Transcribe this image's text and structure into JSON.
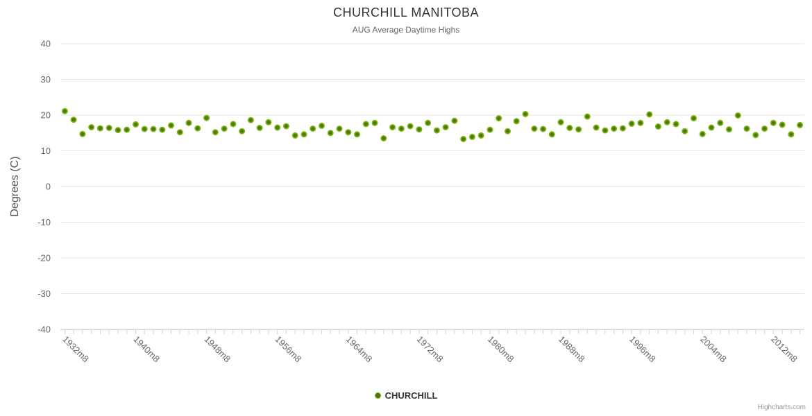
{
  "credits": "Highcharts.com",
  "colors": {
    "grid": "#e6e6e6",
    "axis_line": "#ccd6eb",
    "tick": "#ccd6eb",
    "title_text": "#333333",
    "subtitle_text": "#666666",
    "axis_label_text": "#666666",
    "legend_text": "#333333",
    "credits_text": "#999999",
    "marker_outer": "#7cb50e",
    "marker_center": "#4a750a"
  },
  "chart_data": {
    "type": "scatter",
    "title": "CHURCHILL MANITOBA",
    "subtitle": "AUG Average Daytime Highs",
    "xlabel": "",
    "ylabel": "Degrees (C)",
    "ylim": [
      -40,
      40
    ],
    "y_ticks": [
      40,
      30,
      20,
      10,
      0,
      -10,
      -20,
      -30,
      -40
    ],
    "x_label_step": 8,
    "x_visible_labels": [
      "1932m8",
      "1940m8",
      "1948m8",
      "1956m8",
      "1964m8",
      "1972m8",
      "1980m8",
      "1988m8",
      "1996m8",
      "2004m8",
      "2012m8"
    ],
    "grid": "horizontal",
    "legend_position": "bottom-center",
    "categories": [
      "1932m8",
      "1933m8",
      "1934m8",
      "1935m8",
      "1936m8",
      "1937m8",
      "1938m8",
      "1939m8",
      "1940m8",
      "1941m8",
      "1942m8",
      "1943m8",
      "1944m8",
      "1945m8",
      "1946m8",
      "1947m8",
      "1948m8",
      "1949m8",
      "1950m8",
      "1951m8",
      "1952m8",
      "1953m8",
      "1954m8",
      "1955m8",
      "1956m8",
      "1957m8",
      "1958m8",
      "1959m8",
      "1960m8",
      "1961m8",
      "1962m8",
      "1963m8",
      "1964m8",
      "1965m8",
      "1966m8",
      "1967m8",
      "1968m8",
      "1969m8",
      "1970m8",
      "1971m8",
      "1972m8",
      "1973m8",
      "1974m8",
      "1975m8",
      "1976m8",
      "1977m8",
      "1978m8",
      "1979m8",
      "1980m8",
      "1981m8",
      "1982m8",
      "1983m8",
      "1984m8",
      "1985m8",
      "1986m8",
      "1987m8",
      "1988m8",
      "1989m8",
      "1990m8",
      "1991m8",
      "1992m8",
      "1993m8",
      "1994m8",
      "1995m8",
      "1996m8",
      "1997m8",
      "1998m8",
      "1999m8",
      "2000m8",
      "2001m8",
      "2002m8",
      "2003m8",
      "2004m8",
      "2005m8",
      "2006m8",
      "2007m8",
      "2008m8",
      "2009m8",
      "2010m8",
      "2011m8",
      "2012m8",
      "2013m8",
      "2014m8",
      "2015m8"
    ],
    "series": [
      {
        "name": "CHURCHILL",
        "color": "#7cb50e",
        "marker_center": "#4a750a",
        "values": [
          21.1,
          18.7,
          14.7,
          16.6,
          16.3,
          16.4,
          15.8,
          15.9,
          17.4,
          16.1,
          16.1,
          15.9,
          17.1,
          15.2,
          17.8,
          16.3,
          19.2,
          15.2,
          16.2,
          17.5,
          15.5,
          18.6,
          16.4,
          18.0,
          16.5,
          16.9,
          14.3,
          14.6,
          16.2,
          17.0,
          15.0,
          16.2,
          15.2,
          14.6,
          17.5,
          17.8,
          13.5,
          16.6,
          16.2,
          16.9,
          16.0,
          17.8,
          15.7,
          16.6,
          18.4,
          13.3,
          13.9,
          14.3,
          15.9,
          19.1,
          15.5,
          18.3,
          20.3,
          16.2,
          16.1,
          14.6,
          18.0,
          16.4,
          16.0,
          19.6,
          16.5,
          15.7,
          16.2,
          16.3,
          17.6,
          17.8,
          20.2,
          16.8,
          18.0,
          17.5,
          15.5,
          19.1,
          14.7,
          16.5,
          17.8,
          16.0,
          19.9,
          16.2,
          14.4,
          16.2,
          17.8,
          17.3,
          14.6,
          17.2
        ]
      }
    ]
  }
}
